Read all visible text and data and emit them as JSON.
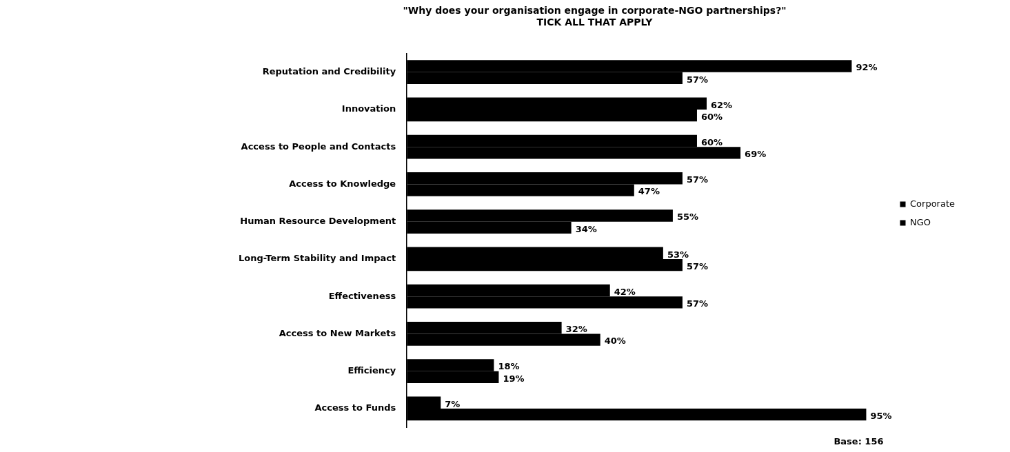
{
  "chart_data": {
    "type": "bar",
    "orientation": "horizontal",
    "title": "\"Why does your organisation engage in corporate-NGO partnerships?\"\nTICK ALL THAT APPLY",
    "categories": [
      "Reputation and Credibility",
      "Innovation",
      "Access to People and Contacts",
      "Access to Knowledge",
      "Human Resource Development",
      "Long-Term Stability and Impact",
      "Effectiveness",
      "Access to New Markets",
      "Efficiency",
      "Access to Funds"
    ],
    "series": [
      {
        "name": "Corporate",
        "color": "#000000",
        "values": [
          92,
          62,
          60,
          57,
          55,
          53,
          42,
          32,
          18,
          7
        ],
        "value_labels": [
          "92%",
          "62%",
          "60%",
          "57%",
          "55%",
          "53%",
          "42%",
          "32%",
          "18%",
          "7%"
        ]
      },
      {
        "name": "NGO",
        "color": "#000000",
        "values": [
          57,
          60,
          69,
          47,
          34,
          57,
          57,
          40,
          19,
          95
        ],
        "value_labels": [
          "57%",
          "60%",
          "69%",
          "47%",
          "34%",
          "57%",
          "57%",
          "40%",
          "19%",
          "95%"
        ]
      }
    ],
    "legend": "right",
    "annotations": [
      "Base: 156"
    ]
  }
}
